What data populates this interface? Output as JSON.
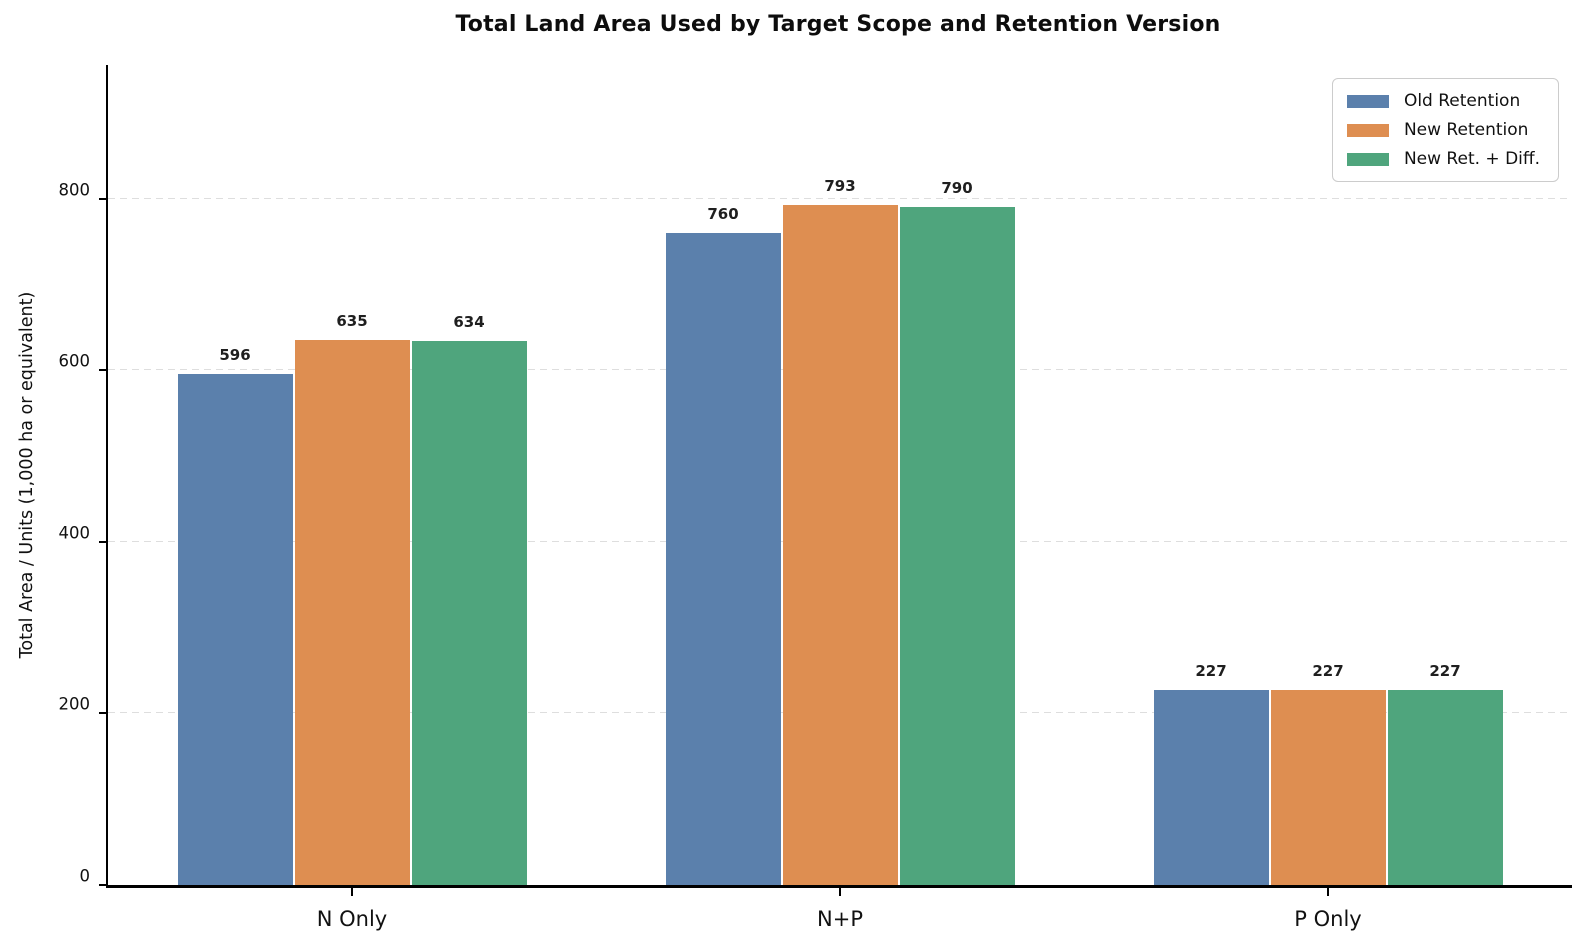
{
  "title": "Total Land Area Used by Target Scope and Retention Version",
  "chart_data": {
    "type": "bar",
    "title": "Total Land Area Used by Target Scope and Retention Version",
    "categories": [
      "N Only",
      "N+P",
      "P Only"
    ],
    "series": [
      {
        "name": "Old Retention",
        "color": "#5b80ac",
        "values": [
          596,
          760,
          227
        ]
      },
      {
        "name": "New Retention",
        "color": "#de8e51",
        "values": [
          635,
          793,
          227
        ]
      },
      {
        "name": "New Ret. + Diff.",
        "color": "#4fa57d",
        "values": [
          634,
          790,
          227
        ]
      }
    ],
    "xlabel": "",
    "ylabel": "Total Area / Units (1,000 ha or equivalent)",
    "ylim": [
      0,
      956
    ],
    "yticks": [
      0,
      200,
      400,
      600,
      800
    ],
    "grid": "horizontal-dashed",
    "gridline_color": "#dedede",
    "legend_position": "upper-right",
    "bar_value_labels": true,
    "value_label_color": "#1f1f1f",
    "axis_color": "#000000"
  }
}
